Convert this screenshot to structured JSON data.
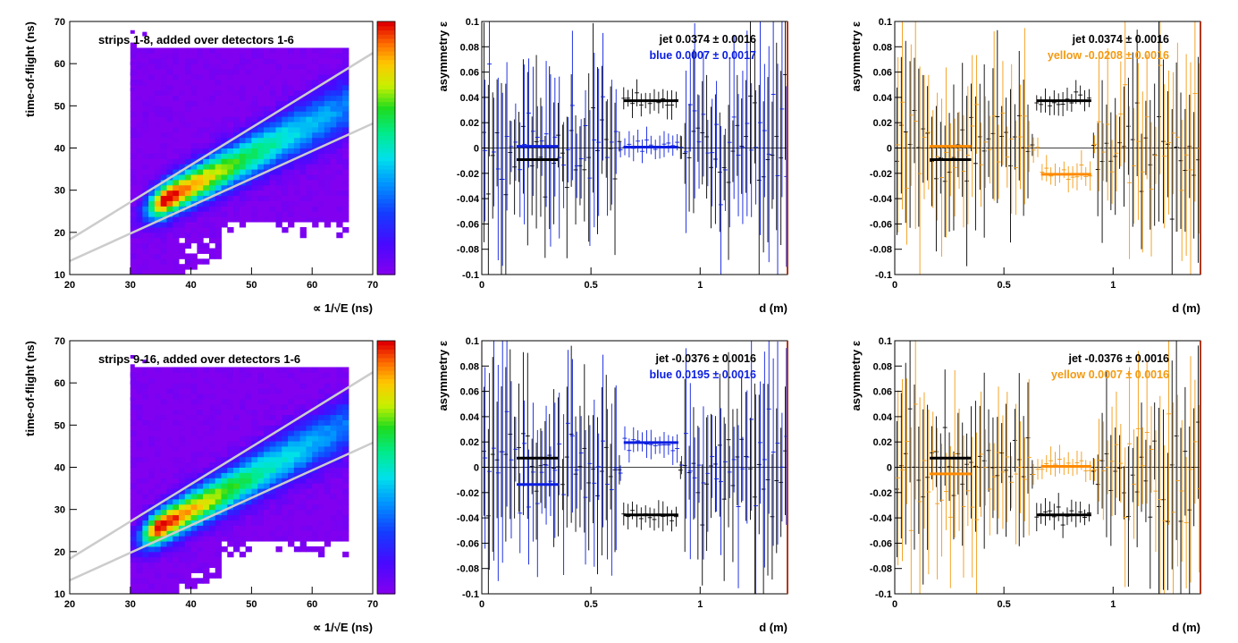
{
  "colors": {
    "black": "#000000",
    "blue": "#0b1ee0",
    "yellow": "#f39a12",
    "orange_fit": "#ff8a00",
    "fit_line": "#cccccc",
    "frame_right": "#b0391e",
    "zero_line": "#000000"
  },
  "chart_data": [
    {
      "type": "heatmap",
      "title": "strips 1-8, added over detectors 1-6",
      "xlabel": "∝ 1/√E (ns)",
      "ylabel": "time-of-flight (ns)",
      "xlim": [
        20,
        70
      ],
      "ylim": [
        10,
        70
      ],
      "xticks": [
        "20",
        "30",
        "40",
        "50",
        "60",
        "70"
      ],
      "yticks": [
        "10",
        "20",
        "30",
        "40",
        "50",
        "60",
        "70"
      ],
      "colorbar": "z",
      "band": {
        "x_start": 30,
        "x_end": 66,
        "peak": [
          36,
          28
        ],
        "core_slope": 0.74
      },
      "cut_lines": [
        {
          "x": [
            20,
            70
          ],
          "y": [
            18.3,
            62.5
          ]
        },
        {
          "x": [
            20,
            70
          ],
          "y": [
            13.2,
            45.8
          ]
        }
      ]
    },
    {
      "type": "scatter",
      "xlabel": "d (m)",
      "ylabel": "asymmetry ε",
      "xlim": [
        0,
        1.4
      ],
      "ylim": [
        -0.1,
        0.1
      ],
      "xticks": [
        "0",
        "0.5",
        "1"
      ],
      "yticks": [
        "-0.1",
        "-0.08",
        "-0.06",
        "-0.04",
        "-0.02",
        "0",
        "0.02",
        "0.04",
        "0.06",
        "0.08",
        "0.1"
      ],
      "legend": [
        {
          "label": "jet  0.0374 ± 0.0016",
          "color": "black"
        },
        {
          "label": "blue  0.0007 ± 0.0017",
          "color": "blue"
        }
      ],
      "series": [
        {
          "name": "jet",
          "color": "black",
          "fits": [
            {
              "x": [
                0.16,
                0.35
              ],
              "y": -0.0092
            },
            {
              "x": [
                0.65,
                0.9
              ],
              "y": 0.0374
            }
          ]
        },
        {
          "name": "blue",
          "color": "blue",
          "fits": [
            {
              "x": [
                0.16,
                0.35
              ],
              "y": 0.0013
            },
            {
              "x": [
                0.65,
                0.9
              ],
              "y": 0.0007
            }
          ]
        }
      ]
    },
    {
      "type": "scatter",
      "xlabel": "d (m)",
      "ylabel": "asymmetry ε",
      "xlim": [
        0,
        1.4
      ],
      "ylim": [
        -0.1,
        0.1
      ],
      "xticks": [
        "0",
        "0.5",
        "1"
      ],
      "yticks": [
        "-0.1",
        "-0.08",
        "-0.06",
        "-0.04",
        "-0.02",
        "0",
        "0.02",
        "0.04",
        "0.06",
        "0.08",
        "0.1"
      ],
      "legend": [
        {
          "label": "jet  0.0374 ± 0.0016",
          "color": "black"
        },
        {
          "label": "yellow -0.0208 ± 0.0016",
          "color": "yellow"
        }
      ],
      "series": [
        {
          "name": "jet",
          "color": "black",
          "fits": [
            {
              "x": [
                0.16,
                0.35
              ],
              "y": -0.0092
            },
            {
              "x": [
                0.65,
                0.9
              ],
              "y": 0.0374
            }
          ]
        },
        {
          "name": "yellow",
          "color": "yellow",
          "fits": [
            {
              "x": [
                0.16,
                0.35
              ],
              "y": 0.0013
            },
            {
              "x": [
                0.67,
                0.9
              ],
              "y": -0.0208
            }
          ]
        }
      ]
    },
    {
      "type": "heatmap",
      "title": "strips 9-16, added over detectors 1-6",
      "xlabel": "∝ 1/√E (ns)",
      "ylabel": "time-of-flight (ns)",
      "xlim": [
        20,
        70
      ],
      "ylim": [
        10,
        70
      ],
      "xticks": [
        "20",
        "30",
        "40",
        "50",
        "60",
        "70"
      ],
      "yticks": [
        "10",
        "20",
        "30",
        "40",
        "50",
        "60",
        "70"
      ],
      "colorbar": "z",
      "band": {
        "x_start": 30,
        "x_end": 66,
        "peak": [
          35,
          26
        ],
        "core_slope": 0.78
      },
      "cut_lines": [
        {
          "x": [
            20,
            70
          ],
          "y": [
            18.3,
            62.5
          ]
        },
        {
          "x": [
            20,
            70
          ],
          "y": [
            13.2,
            45.8
          ]
        }
      ]
    },
    {
      "type": "scatter",
      "xlabel": "d (m)",
      "ylabel": "asymmetry ε",
      "xlim": [
        0,
        1.4
      ],
      "ylim": [
        -0.1,
        0.1
      ],
      "xticks": [
        "0",
        "0.5",
        "1"
      ],
      "yticks": [
        "-0.1",
        "-0.08",
        "-0.06",
        "-0.04",
        "-0.02",
        "0",
        "0.02",
        "0.04",
        "0.06",
        "0.08",
        "0.1"
      ],
      "legend": [
        {
          "label": "jet -0.0376 ± 0.0016",
          "color": "black"
        },
        {
          "label": "blue  0.0195 ± 0.0016",
          "color": "blue"
        }
      ],
      "series": [
        {
          "name": "jet",
          "color": "black",
          "fits": [
            {
              "x": [
                0.16,
                0.35
              ],
              "y": 0.0072
            },
            {
              "x": [
                0.65,
                0.9
              ],
              "y": -0.0376
            }
          ]
        },
        {
          "name": "blue",
          "color": "blue",
          "fits": [
            {
              "x": [
                0.16,
                0.35
              ],
              "y": -0.0136
            },
            {
              "x": [
                0.65,
                0.9
              ],
              "y": 0.0195
            }
          ]
        }
      ]
    },
    {
      "type": "scatter",
      "xlabel": "d (m)",
      "ylabel": "asymmetry ε",
      "xlim": [
        0,
        1.4
      ],
      "ylim": [
        -0.1,
        0.1
      ],
      "xticks": [
        "0",
        "0.5",
        "1"
      ],
      "yticks": [
        "-0.1",
        "-0.08",
        "-0.06",
        "-0.04",
        "-0.02",
        "0",
        "0.02",
        "0.04",
        "0.06",
        "0.08",
        "0.1"
      ],
      "legend": [
        {
          "label": "jet -0.0376 ± 0.0016",
          "color": "black"
        },
        {
          "label": "yellow  0.0007 ± 0.0016",
          "color": "yellow"
        }
      ],
      "series": [
        {
          "name": "jet",
          "color": "black",
          "fits": [
            {
              "x": [
                0.16,
                0.35
              ],
              "y": 0.0072
            },
            {
              "x": [
                0.65,
                0.9
              ],
              "y": -0.0376
            }
          ]
        },
        {
          "name": "yellow",
          "color": "yellow",
          "fits": [
            {
              "x": [
                0.16,
                0.35
              ],
              "y": -0.0052
            },
            {
              "x": [
                0.67,
                0.9
              ],
              "y": 0.0007
            }
          ]
        }
      ]
    }
  ]
}
